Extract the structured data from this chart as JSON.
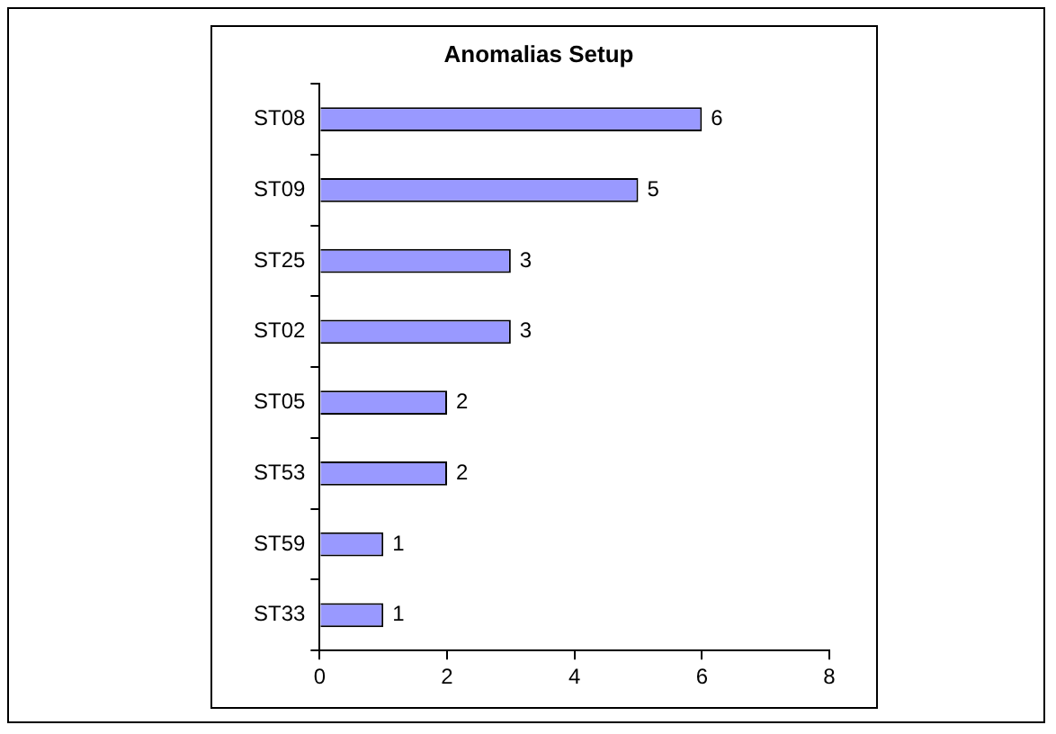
{
  "chart_data": {
    "type": "bar",
    "title": "Anomalias Setup",
    "orientation": "horizontal",
    "categories": [
      "ST08",
      "ST09",
      "ST25",
      "ST02",
      "ST05",
      "ST53",
      "ST59",
      "ST33"
    ],
    "values": [
      6,
      5,
      3,
      3,
      2,
      2,
      1,
      1
    ],
    "color": "#9999ff",
    "xlim": [
      0,
      8
    ],
    "xticks": [
      0,
      2,
      4,
      6,
      8
    ],
    "grid": false,
    "legend": false,
    "data_labels": true
  }
}
